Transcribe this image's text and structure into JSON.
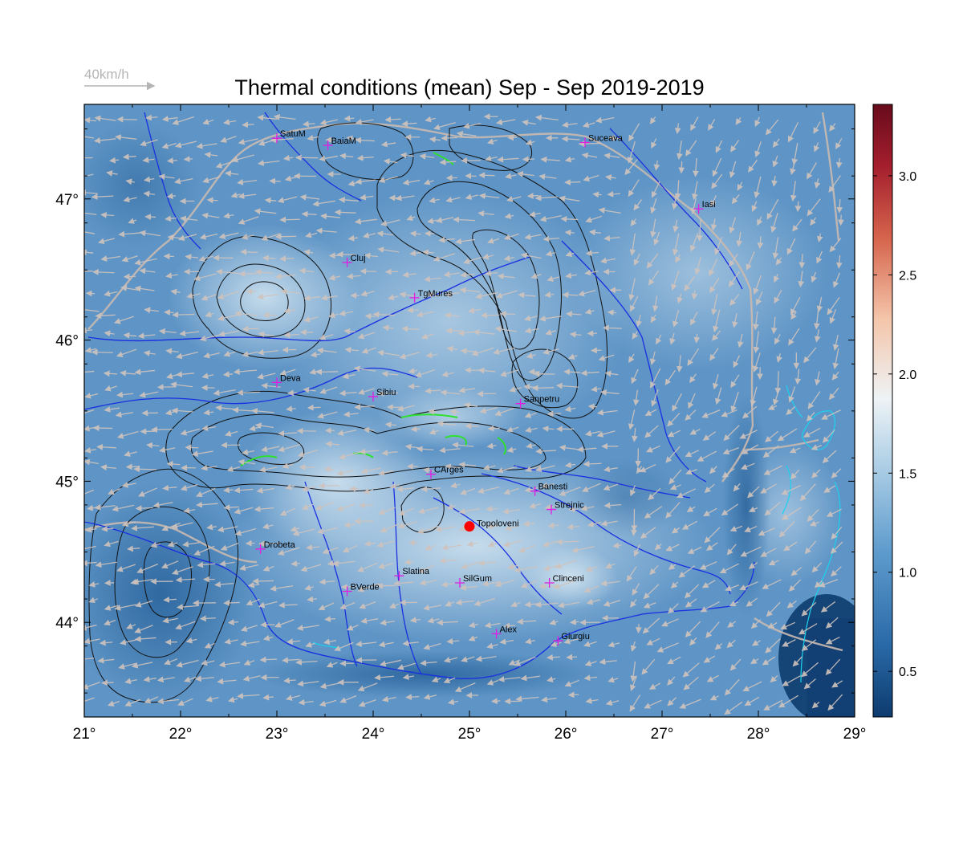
{
  "title": "Thermal conditions (mean) Sep - Sep  2019-2019",
  "wind_legend": {
    "label": "40km/h"
  },
  "map": {
    "lon_range": [
      21,
      29
    ],
    "lat_range": [
      43.33,
      47.67
    ],
    "lon_ticks": [
      "21°",
      "22°",
      "23°",
      "24°",
      "25°",
      "26°",
      "27°",
      "28°",
      "29°"
    ],
    "lat_ticks": [
      "44°",
      "45°",
      "46°",
      "47°"
    ],
    "highlight_location": {
      "name": "Topoloveni",
      "lon": 25.0,
      "lat": 44.68,
      "color": "#ff0000"
    },
    "cities": [
      {
        "name": "SatuM",
        "lon": 23.0,
        "lat": 47.43
      },
      {
        "name": "BaiaM",
        "lon": 23.53,
        "lat": 47.38
      },
      {
        "name": "Suceava",
        "lon": 26.2,
        "lat": 47.4
      },
      {
        "name": "Iasi",
        "lon": 27.38,
        "lat": 46.93
      },
      {
        "name": "Cluj",
        "lon": 23.73,
        "lat": 46.55
      },
      {
        "name": "TgMures",
        "lon": 24.43,
        "lat": 46.3
      },
      {
        "name": "Deva",
        "lon": 23.0,
        "lat": 45.7
      },
      {
        "name": "Sibiu",
        "lon": 24.0,
        "lat": 45.6
      },
      {
        "name": "Sanpetru",
        "lon": 25.53,
        "lat": 45.55
      },
      {
        "name": "CArges",
        "lon": 24.6,
        "lat": 45.05
      },
      {
        "name": "Banesti",
        "lon": 25.68,
        "lat": 44.93
      },
      {
        "name": "Strejnic",
        "lon": 25.85,
        "lat": 44.8
      },
      {
        "name": "Drobeta",
        "lon": 22.83,
        "lat": 44.52
      },
      {
        "name": "Slatina",
        "lon": 24.27,
        "lat": 44.33
      },
      {
        "name": "SilGum",
        "lon": 24.9,
        "lat": 44.28
      },
      {
        "name": "Clinceni",
        "lon": 25.83,
        "lat": 44.28
      },
      {
        "name": "BVerde",
        "lon": 23.73,
        "lat": 44.22
      },
      {
        "name": "Alex",
        "lon": 25.28,
        "lat": 43.92
      },
      {
        "name": "Giurgiu",
        "lon": 25.92,
        "lat": 43.87
      }
    ]
  },
  "colorbar": {
    "min": 0.27,
    "max": 3.36,
    "ticks": [
      "0.5",
      "1.0",
      "1.5",
      "2.0",
      "2.5",
      "3.0"
    ],
    "colors": [
      "#0d3b6e",
      "#2a6aa8",
      "#5e9bcd",
      "#a7cbe4",
      "#eef3f6",
      "#f4c5aa",
      "#d6654d",
      "#a41e2d",
      "#670b1c"
    ]
  }
}
